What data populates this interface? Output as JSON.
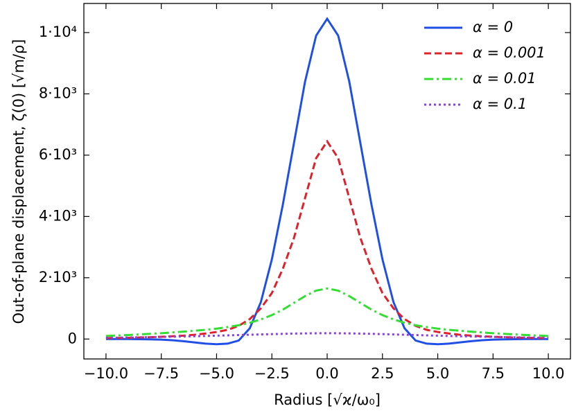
{
  "chart_data": {
    "type": "line",
    "xlabel": "Radius [√ϰ/ω₀]",
    "ylabel": "Out-of-plane displacement, ζ(0) [√m/ρ]",
    "x": [
      -10,
      -9.5,
      -9,
      -8.5,
      -8,
      -7.5,
      -7,
      -6.5,
      -6,
      -5.5,
      -5,
      -4.5,
      -4,
      -3.5,
      -3,
      -2.5,
      -2,
      -1.5,
      -1,
      -0.5,
      0,
      0.5,
      1,
      1.5,
      2,
      2.5,
      3,
      3.5,
      4,
      4.5,
      5,
      5.5,
      6,
      6.5,
      7,
      7.5,
      8,
      8.5,
      9,
      9.5,
      10
    ],
    "series": [
      {
        "name": "α = 0",
        "color": "#1f4fe6",
        "linestyle": "solid",
        "values": [
          0,
          0,
          0,
          -5,
          -10,
          -20,
          -40,
          -70,
          -110,
          -150,
          -170,
          -150,
          -50,
          350,
          1200,
          2600,
          4400,
          6400,
          8400,
          9900,
          10450,
          9900,
          8400,
          6400,
          4400,
          2600,
          1200,
          350,
          -50,
          -150,
          -170,
          -150,
          -110,
          -70,
          -40,
          -20,
          -10,
          -5,
          0,
          0,
          0
        ]
      },
      {
        "name": "α = 0.001",
        "color": "#e0202a",
        "linestyle": "dashed",
        "values": [
          30,
          35,
          40,
          50,
          60,
          75,
          90,
          110,
          140,
          180,
          230,
          300,
          430,
          650,
          1000,
          1500,
          2300,
          3300,
          4600,
          5900,
          6450,
          5900,
          4600,
          3300,
          2300,
          1500,
          1000,
          650,
          430,
          300,
          230,
          180,
          140,
          110,
          90,
          75,
          60,
          50,
          40,
          35,
          30
        ]
      },
      {
        "name": "α = 0.01",
        "color": "#33dd33",
        "linestyle": "dashdot",
        "values": [
          100,
          115,
          130,
          150,
          170,
          190,
          215,
          240,
          270,
          300,
          340,
          390,
          450,
          530,
          640,
          780,
          960,
          1180,
          1400,
          1580,
          1650,
          1580,
          1400,
          1180,
          960,
          780,
          640,
          530,
          450,
          390,
          340,
          300,
          270,
          240,
          215,
          190,
          170,
          150,
          130,
          115,
          100
        ]
      },
      {
        "name": "α = 0.1",
        "color": "#8a3fe0",
        "linestyle": "dotted",
        "values": [
          40,
          45,
          50,
          56,
          62,
          69,
          76,
          84,
          92,
          100,
          110,
          120,
          130,
          140,
          150,
          160,
          170,
          178,
          184,
          188,
          190,
          188,
          184,
          178,
          170,
          160,
          150,
          140,
          130,
          120,
          110,
          100,
          92,
          84,
          76,
          69,
          62,
          56,
          50,
          45,
          40
        ]
      }
    ],
    "xlim": [
      -11,
      11
    ],
    "xticks": [
      {
        "value": -10,
        "label": "−10.0"
      },
      {
        "value": -7.5,
        "label": "−7.5"
      },
      {
        "value": -5,
        "label": "−5.0"
      },
      {
        "value": -2.5,
        "label": "−2.5"
      },
      {
        "value": 0,
        "label": "0.0"
      },
      {
        "value": 2.5,
        "label": "2.5"
      },
      {
        "value": 5,
        "label": "5.0"
      },
      {
        "value": 7.5,
        "label": "7.5"
      },
      {
        "value": 10,
        "label": "10.0"
      }
    ],
    "ylim": [
      -650,
      10950
    ],
    "yticks": [
      0,
      {
        "value": 2000,
        "label": "2·10³"
      },
      {
        "value": 4000,
        "label": "4·10³"
      },
      {
        "value": 6000,
        "label": "6·10³"
      },
      {
        "value": 8000,
        "label": "8·10³"
      },
      {
        "value": 10000,
        "label": "1·10⁴"
      }
    ],
    "legend": "upper right"
  }
}
